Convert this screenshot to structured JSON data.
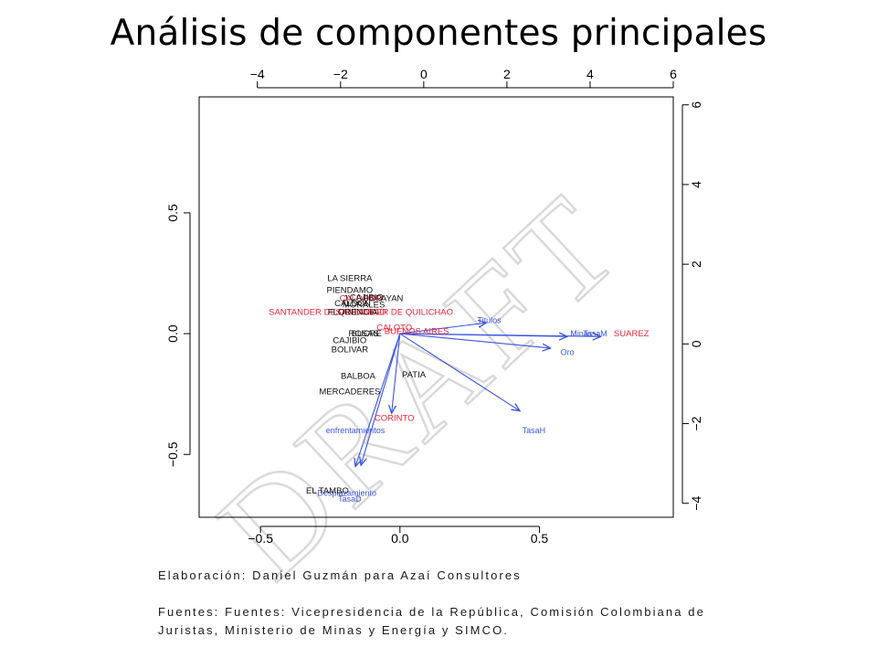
{
  "slide": {
    "title": "Análisis de componentes principales"
  },
  "caption": {
    "author": "Elaboración: Daniel Guzmán para Azaí Consultores",
    "sources_line1": "Fuentes: Fuentes: Vicepresidencia de la República, Comisión Colombiana de",
    "sources_line2": "Juristas, Ministerio de Minas y Energía y SIMCO."
  },
  "watermark": {
    "text": "DRAFT"
  },
  "colors": {
    "observation_black": "#111111",
    "observation_red": "#e8263a",
    "variable_blue": "#3a55e0",
    "axis": "#000000",
    "watermark": "#d9d9d9"
  },
  "chart_data": {
    "type": "scatter",
    "title": "",
    "xlabel": "",
    "ylabel": "",
    "grid": false,
    "legend": "none",
    "bottom_axis": {
      "range": [
        -0.72,
        0.98
      ],
      "ticks": [
        -0.5,
        0.0,
        0.5
      ],
      "tick_labels": [
        "−0.5",
        "0.0",
        "0.5"
      ]
    },
    "left_axis": {
      "range": [
        -0.76,
        0.98
      ],
      "ticks": [
        -0.5,
        0.0,
        0.5
      ],
      "tick_labels": [
        "−0.5",
        "0.0",
        "0.5"
      ]
    },
    "top_axis": {
      "range": [
        -5.4,
        6.0
      ],
      "ticks": [
        -4,
        -2,
        0,
        2,
        4,
        6
      ],
      "tick_labels": [
        "−4",
        "−2",
        "0",
        "2",
        "4",
        "6"
      ]
    },
    "right_axis": {
      "range": [
        -4.35,
        6.2
      ],
      "ticks": [
        -4,
        -2,
        0,
        2,
        4,
        6
      ],
      "tick_labels": [
        "−4",
        "−2",
        "0",
        "2",
        "4",
        "6"
      ]
    },
    "observations": [
      {
        "label": "LA SIERRA",
        "x": -0.18,
        "y": 0.23,
        "group": "black"
      },
      {
        "label": "PIENDAMO",
        "x": -0.18,
        "y": 0.18,
        "group": "black"
      },
      {
        "label": "J…",
        "x": -0.18,
        "y": 0.145,
        "group": "black"
      },
      {
        "label": "POPAYAN",
        "x": -0.06,
        "y": 0.145,
        "group": "black"
      },
      {
        "label": "CALDONO",
        "x": -0.14,
        "y": 0.145,
        "group": "red"
      },
      {
        "label": "CAJIBIO",
        "x": -0.12,
        "y": 0.15,
        "group": "black"
      },
      {
        "label": "CALDON",
        "x": -0.17,
        "y": 0.125,
        "group": "black"
      },
      {
        "label": "MORALES",
        "x": -0.13,
        "y": 0.12,
        "group": "black"
      },
      {
        "label": "SANTANDER DE QUILICHAO",
        "x": -0.02,
        "y": 0.09,
        "group": "red"
      },
      {
        "label": "SANTANDER DE QUILICHAO",
        "x": -0.26,
        "y": 0.09,
        "group": "red"
      },
      {
        "label": "FLORENCIA",
        "x": -0.17,
        "y": 0.09,
        "group": "black"
      },
      {
        "label": "CALOTO",
        "x": -0.02,
        "y": 0.025,
        "group": "red"
      },
      {
        "label": "BUENOS AIRES",
        "x": 0.06,
        "y": 0.01,
        "group": "red"
      },
      {
        "label": "ROSAS",
        "x": -0.13,
        "y": 0.0,
        "group": "black"
      },
      {
        "label": "SUCRE",
        "x": -0.12,
        "y": 0.0,
        "group": "black"
      },
      {
        "label": "CAJIBIO",
        "x": -0.18,
        "y": -0.028,
        "group": "black"
      },
      {
        "label": "BOLIVAR",
        "x": -0.18,
        "y": -0.065,
        "group": "black"
      },
      {
        "label": "BALBOA",
        "x": -0.15,
        "y": -0.175,
        "group": "black"
      },
      {
        "label": "PATIA",
        "x": 0.05,
        "y": -0.17,
        "group": "black"
      },
      {
        "label": "MERCADERES",
        "x": -0.18,
        "y": -0.24,
        "group": "black"
      },
      {
        "label": "CORINTO",
        "x": -0.02,
        "y": -0.35,
        "group": "red"
      },
      {
        "label": "SUAREZ",
        "x": 0.83,
        "y": 0.0,
        "group": "red"
      },
      {
        "label": "EL TAMBO",
        "x": -0.26,
        "y": -0.65,
        "group": "black"
      }
    ],
    "variables": [
      {
        "name": "Titulos",
        "x": 0.31,
        "y": 0.045,
        "label_x": 0.32,
        "label_y": 0.055
      },
      {
        "name": "Minas",
        "x": 0.6,
        "y": -0.012,
        "label_x": 0.65,
        "label_y": 0.0
      },
      {
        "name": "TasaM",
        "x": 0.72,
        "y": -0.012,
        "label_x": 0.7,
        "label_y": 0.0
      },
      {
        "name": "Oro",
        "x": 0.54,
        "y": -0.06,
        "label_x": 0.6,
        "label_y": -0.078
      },
      {
        "name": "TasaH",
        "x": 0.43,
        "y": -0.32,
        "label_x": 0.48,
        "label_y": -0.4
      },
      {
        "name": "enfrentamientos",
        "x": -0.03,
        "y": -0.33,
        "label_x": -0.16,
        "label_y": -0.4
      },
      {
        "name": "Desplazamiento",
        "x": -0.16,
        "y": -0.55,
        "label_x": -0.19,
        "label_y": -0.66
      },
      {
        "name": "TasaD",
        "x": -0.14,
        "y": -0.545,
        "label_x": -0.18,
        "label_y": -0.685
      }
    ]
  }
}
